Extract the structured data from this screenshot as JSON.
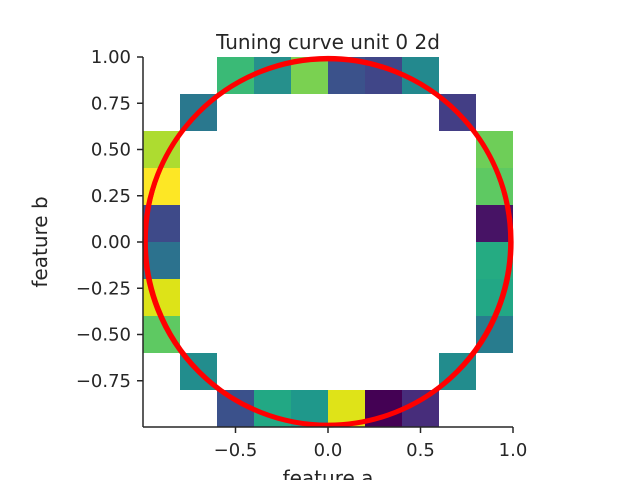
{
  "chart_data": {
    "type": "heatmap",
    "title": "Tuning curve unit 0 2d",
    "xlabel": "feature a",
    "ylabel": "feature b",
    "xlim": [
      -1.0,
      1.0
    ],
    "ylim": [
      -1.0,
      1.0
    ],
    "x_ticks": [
      "−0.5",
      "0.0",
      "0.5",
      "1.0"
    ],
    "x_tick_values": [
      -0.5,
      0.0,
      0.5,
      1.0
    ],
    "y_ticks": [
      "1.00",
      "0.75",
      "0.50",
      "0.25",
      "0.00",
      "−0.25",
      "−0.50",
      "−0.75"
    ],
    "y_tick_values": [
      1.0,
      0.75,
      0.5,
      0.25,
      0.0,
      -0.25,
      -0.5,
      -0.75
    ],
    "grid": false,
    "colormap": "viridis",
    "bin_size": 0.2,
    "cells": [
      {
        "x": -0.6,
        "y": 0.8,
        "color": "#3aba76"
      },
      {
        "x": -0.4,
        "y": 0.8,
        "color": "#26908c"
      },
      {
        "x": -0.2,
        "y": 0.8,
        "color": "#7ad151"
      },
      {
        "x": 0.0,
        "y": 0.8,
        "color": "#3b528b"
      },
      {
        "x": 0.2,
        "y": 0.8,
        "color": "#404688"
      },
      {
        "x": 0.4,
        "y": 0.8,
        "color": "#23898e"
      },
      {
        "x": -0.8,
        "y": 0.6,
        "color": "#2a788e"
      },
      {
        "x": 0.6,
        "y": 0.6,
        "color": "#433e85"
      },
      {
        "x": -1.0,
        "y": 0.4,
        "color": "#addc30"
      },
      {
        "x": 0.8,
        "y": 0.4,
        "color": "#6ece58"
      },
      {
        "x": -1.0,
        "y": 0.2,
        "color": "#fde725"
      },
      {
        "x": 0.8,
        "y": 0.2,
        "color": "#5ec962"
      },
      {
        "x": -1.0,
        "y": 0.0,
        "color": "#3e4a89"
      },
      {
        "x": 0.8,
        "y": 0.0,
        "color": "#471365"
      },
      {
        "x": -1.0,
        "y": -0.2,
        "color": "#2c728e"
      },
      {
        "x": 0.8,
        "y": -0.2,
        "color": "#25ab82"
      },
      {
        "x": -1.0,
        "y": -0.4,
        "color": "#dde318"
      },
      {
        "x": 0.8,
        "y": -0.4,
        "color": "#22a785"
      },
      {
        "x": -1.0,
        "y": -0.6,
        "color": "#5ec962"
      },
      {
        "x": 0.8,
        "y": -0.6,
        "color": "#287c8e"
      },
      {
        "x": -0.8,
        "y": -0.8,
        "color": "#228d8d"
      },
      {
        "x": 0.6,
        "y": -0.8,
        "color": "#228c8d"
      },
      {
        "x": -0.6,
        "y": -1.0,
        "color": "#3b518b"
      },
      {
        "x": -0.4,
        "y": -1.0,
        "color": "#22a884"
      },
      {
        "x": -0.2,
        "y": -1.0,
        "color": "#1f988b"
      },
      {
        "x": 0.0,
        "y": -1.0,
        "color": "#dfe318"
      },
      {
        "x": 0.2,
        "y": -1.0,
        "color": "#440154"
      },
      {
        "x": 0.4,
        "y": -1.0,
        "color": "#472d7b"
      }
    ],
    "overlay": {
      "type": "circle",
      "center": [
        0.0,
        0.0
      ],
      "radius": 0.99,
      "color": "#ff0000"
    }
  }
}
